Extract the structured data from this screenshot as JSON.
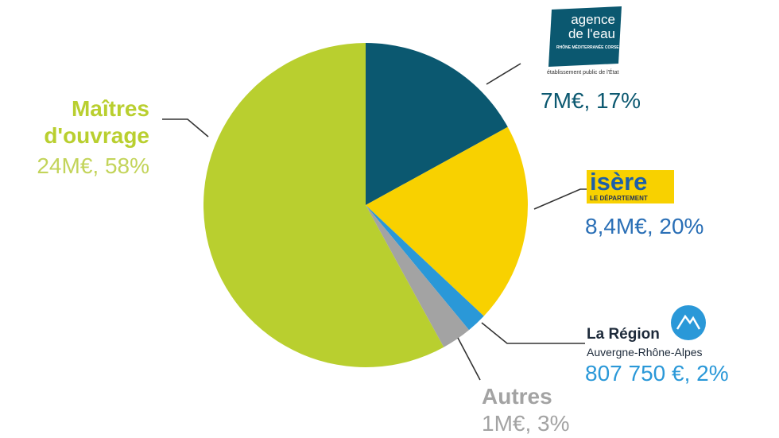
{
  "chart_data": {
    "type": "pie",
    "categories": [
      "agence de l'eau",
      "isère",
      "La Région",
      "Autres",
      "Maîtres d'ouvrage"
    ],
    "values": [
      17,
      20,
      2,
      3,
      58
    ],
    "value_labels": [
      "7M€, 17%",
      "8,4M€, 20%",
      "807 750 €, 2%",
      "1M€, 3%",
      "24M€, 58%"
    ],
    "colors": [
      "#0b5870",
      "#f8d100",
      "#2a98d8",
      "#a3a3a3",
      "#b9cf2f"
    ],
    "logo_texts": {
      "eau_sub": "RHÔNE MÉDITERRANÉE CORSE",
      "eau_caption": "établissement public de l'État",
      "isere_sub": "LE DÉPARTEMENT",
      "region_sub": "Auvergne-Rhône-Alpes"
    }
  }
}
